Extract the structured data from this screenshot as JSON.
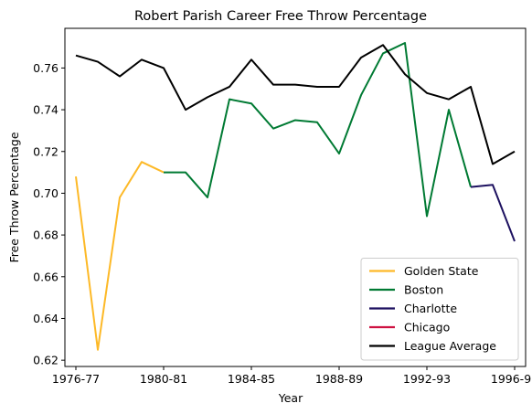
{
  "chart_data": {
    "type": "line",
    "title": "Robert Parish Career Free Throw Percentage",
    "xlabel": "Year",
    "ylabel": "Free Throw Percentage",
    "x_tick_labels": [
      "1976-77",
      "1980-81",
      "1984-85",
      "1988-89",
      "1992-93",
      "1996-97"
    ],
    "x_tick_positions": [
      0,
      4,
      8,
      12,
      16,
      20
    ],
    "x_range": [
      -0.5,
      20.5
    ],
    "ylim": [
      0.617,
      0.779
    ],
    "y_ticks": [
      0.62,
      0.64,
      0.66,
      0.68,
      0.7,
      0.72,
      0.74,
      0.76
    ],
    "y_tick_labels": [
      "0.62",
      "0.64",
      "0.66",
      "0.68",
      "0.70",
      "0.72",
      "0.74",
      "0.76"
    ],
    "grid": false,
    "legend_position": "bottom-right",
    "series": [
      {
        "name": "Golden State",
        "color": "#FDB927",
        "x": [
          0,
          1,
          2,
          3,
          4
        ],
        "values": [
          0.708,
          0.625,
          0.698,
          0.715,
          0.71
        ]
      },
      {
        "name": "Boston",
        "color": "#007A33",
        "x": [
          4,
          5,
          6,
          7,
          8,
          9,
          10,
          11,
          12,
          13,
          14,
          15,
          16,
          17,
          18
        ],
        "values": [
          0.71,
          0.71,
          0.698,
          0.745,
          0.743,
          0.731,
          0.735,
          0.734,
          0.719,
          0.747,
          0.767,
          0.772,
          0.689,
          0.74,
          0.703
        ]
      },
      {
        "name": "Charlotte",
        "color": "#1D1160",
        "x": [
          18,
          19,
          20
        ],
        "values": [
          0.703,
          0.704,
          0.677
        ]
      },
      {
        "name": "Chicago",
        "color": "#CE1141",
        "x": [],
        "values": []
      },
      {
        "name": "League Average",
        "color": "#000000",
        "x": [
          0,
          1,
          2,
          3,
          4,
          5,
          6,
          7,
          8,
          9,
          10,
          11,
          12,
          13,
          14,
          15,
          16,
          17,
          18,
          19,
          20
        ],
        "values": [
          0.766,
          0.763,
          0.756,
          0.764,
          0.76,
          0.74,
          0.746,
          0.751,
          0.764,
          0.752,
          0.752,
          0.751,
          0.751,
          0.765,
          0.771,
          0.757,
          0.748,
          0.745,
          0.751,
          0.714,
          0.72
        ]
      }
    ]
  }
}
